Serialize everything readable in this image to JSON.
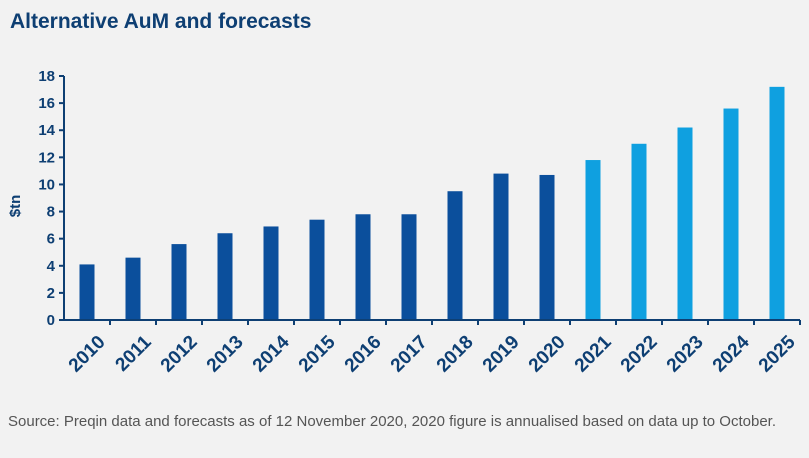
{
  "title": "Alternative AuM and forecasts",
  "source": "Source: Preqin data and forecasts as of 12 November 2020, 2020 figure is annualised based on data up to October.",
  "colors": {
    "actual": "#0b4f9c",
    "forecast": "#0fa0e0",
    "axis": "#0e3f73",
    "text": "#0e3f73"
  },
  "chart_data": {
    "type": "bar",
    "title": "Alternative AuM and forecasts",
    "xlabel": "",
    "ylabel": "$tn",
    "ylim": [
      0,
      18
    ],
    "yticks": [
      0,
      2,
      4,
      6,
      8,
      10,
      12,
      14,
      16,
      18
    ],
    "grid": false,
    "categories": [
      "2010",
      "2011",
      "2012",
      "2013",
      "2014",
      "2015",
      "2016",
      "2017",
      "2018",
      "2019",
      "2020",
      "2021",
      "2022",
      "2023",
      "2024",
      "2025"
    ],
    "values": [
      4.1,
      4.6,
      5.6,
      6.4,
      6.9,
      7.4,
      7.8,
      7.8,
      9.5,
      10.8,
      10.7,
      11.8,
      13.0,
      14.2,
      15.6,
      17.2
    ],
    "forecast_from": "2021"
  }
}
